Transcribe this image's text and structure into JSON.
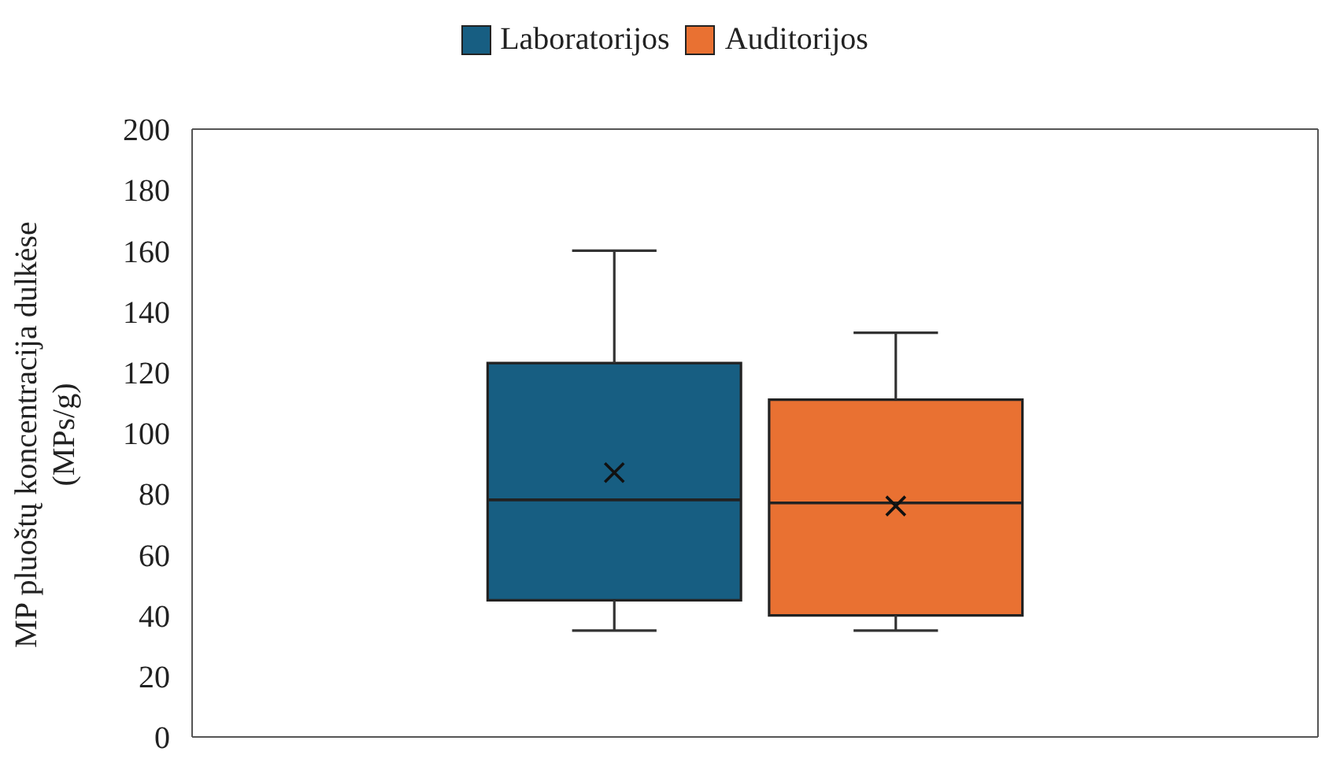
{
  "chart_data": {
    "type": "box",
    "ylabel": "MP pluoštų koncentracija dulkėse (MPs/g)",
    "categories": [
      null
    ],
    "ylim": [
      0,
      200
    ],
    "yticks": [
      0,
      20,
      40,
      60,
      80,
      100,
      120,
      140,
      160,
      180,
      200
    ],
    "legend": "top",
    "tick_labels": "y",
    "series": [
      {
        "name": "Laboratorijos",
        "color": "#175e82",
        "boxes": [
          {
            "low": 35,
            "q1": 45,
            "median": 78,
            "q3": 123,
            "high": 160,
            "mean": 87
          }
        ]
      },
      {
        "name": "Auditorijos",
        "color": "#e97132",
        "boxes": [
          {
            "low": 35,
            "q1": 40,
            "median": 77,
            "q3": 111,
            "high": 133,
            "mean": 76
          }
        ]
      }
    ]
  }
}
